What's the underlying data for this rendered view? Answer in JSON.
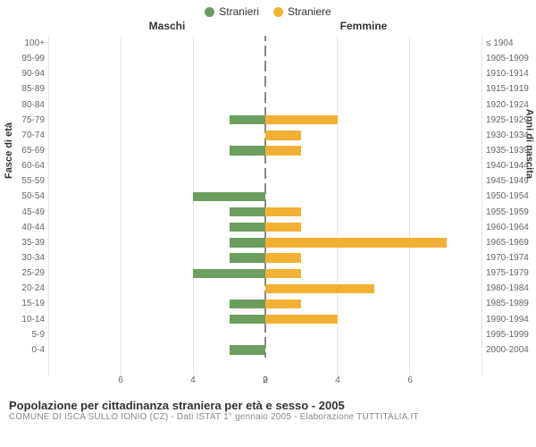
{
  "legend": {
    "male": {
      "label": "Stranieri",
      "color": "#6b9e5f"
    },
    "female": {
      "label": "Straniere",
      "color": "#f2b134"
    }
  },
  "header": {
    "left": "Maschi",
    "right": "Femmine"
  },
  "axis": {
    "y_left_label": "Fasce di età",
    "y_right_label": "Anni di nascita",
    "xlim": 6,
    "xtick_step": 2,
    "xticks_left": [
      "2",
      "4",
      "6"
    ],
    "xticks_right": [
      "2",
      "4",
      "6"
    ],
    "zero": "0"
  },
  "chart": {
    "type": "population-pyramid",
    "bar_colors": {
      "male": "#6b9e5f",
      "female": "#f2b134"
    },
    "background_color": "#ffffff",
    "grid_color": "#e6e6e6",
    "divider_dash_color": "#888888",
    "rows": [
      {
        "age": "100+",
        "birth": "≤ 1904",
        "m": 0,
        "f": 0
      },
      {
        "age": "95-99",
        "birth": "1905-1909",
        "m": 0,
        "f": 0
      },
      {
        "age": "90-94",
        "birth": "1910-1914",
        "m": 0,
        "f": 0
      },
      {
        "age": "85-89",
        "birth": "1915-1919",
        "m": 0,
        "f": 0
      },
      {
        "age": "80-84",
        "birth": "1920-1924",
        "m": 0,
        "f": 0
      },
      {
        "age": "75-79",
        "birth": "1925-1929",
        "m": 1,
        "f": 2
      },
      {
        "age": "70-74",
        "birth": "1930-1934",
        "m": 0,
        "f": 1
      },
      {
        "age": "65-69",
        "birth": "1935-1939",
        "m": 1,
        "f": 1
      },
      {
        "age": "60-64",
        "birth": "1940-1944",
        "m": 0,
        "f": 0
      },
      {
        "age": "55-59",
        "birth": "1945-1949",
        "m": 0,
        "f": 0
      },
      {
        "age": "50-54",
        "birth": "1950-1954",
        "m": 2,
        "f": 0
      },
      {
        "age": "45-49",
        "birth": "1955-1959",
        "m": 1,
        "f": 1
      },
      {
        "age": "40-44",
        "birth": "1960-1964",
        "m": 1,
        "f": 1
      },
      {
        "age": "35-39",
        "birth": "1965-1969",
        "m": 1,
        "f": 5
      },
      {
        "age": "30-34",
        "birth": "1970-1974",
        "m": 1,
        "f": 1
      },
      {
        "age": "25-29",
        "birth": "1975-1979",
        "m": 2,
        "f": 1
      },
      {
        "age": "20-24",
        "birth": "1980-1984",
        "m": 0,
        "f": 3
      },
      {
        "age": "15-19",
        "birth": "1985-1989",
        "m": 1,
        "f": 1
      },
      {
        "age": "10-14",
        "birth": "1990-1994",
        "m": 1,
        "f": 2
      },
      {
        "age": "5-9",
        "birth": "1995-1999",
        "m": 0,
        "f": 0
      },
      {
        "age": "0-4",
        "birth": "2000-2004",
        "m": 1,
        "f": 0
      }
    ]
  },
  "footer": {
    "title": "Popolazione per cittadinanza straniera per età e sesso - 2005",
    "sub": "COMUNE DI ISCA SULLO IONIO (CZ) - Dati ISTAT 1° gennaio 2005 - Elaborazione TUTTITALIA.IT"
  }
}
